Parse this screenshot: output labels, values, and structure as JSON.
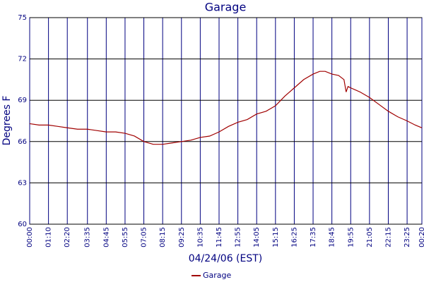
{
  "chart_data": {
    "type": "line",
    "title": "Garage",
    "y_label": "Degrees F",
    "x_label": "04/24/06 (EST)",
    "x": [
      0,
      35,
      70,
      105,
      140,
      178,
      215,
      250,
      285,
      320,
      355,
      390,
      425,
      460,
      495,
      530,
      565,
      600,
      635,
      670,
      705,
      740,
      775,
      810,
      845,
      880,
      915,
      950,
      985,
      1020,
      1055,
      1080,
      1100,
      1125,
      1150,
      1170,
      1178,
      1185,
      1195,
      1230,
      1265,
      1300,
      1335,
      1370,
      1405,
      1435,
      1460
    ],
    "series": [
      {
        "name": "Garage",
        "color": "#a00000",
        "values": [
          67.3,
          67.2,
          67.2,
          67.1,
          67.0,
          66.9,
          66.9,
          66.8,
          66.7,
          66.7,
          66.6,
          66.4,
          66.0,
          65.8,
          65.8,
          65.9,
          66.0,
          66.1,
          66.3,
          66.4,
          66.7,
          67.1,
          67.4,
          67.6,
          68.0,
          68.2,
          68.6,
          69.3,
          69.9,
          70.5,
          70.9,
          71.1,
          71.1,
          70.9,
          70.8,
          70.5,
          69.6,
          70.0,
          69.9,
          69.6,
          69.2,
          68.7,
          68.2,
          67.8,
          67.5,
          67.2,
          67.0
        ]
      }
    ],
    "xlim": [
      0,
      1460
    ],
    "xticks": [
      {
        "value": 0,
        "label": "00:00"
      },
      {
        "value": 70,
        "label": "01:10"
      },
      {
        "value": 140,
        "label": "02:20"
      },
      {
        "value": 215,
        "label": "03:35"
      },
      {
        "value": 285,
        "label": "04:45"
      },
      {
        "value": 355,
        "label": "05:55"
      },
      {
        "value": 425,
        "label": "07:05"
      },
      {
        "value": 495,
        "label": "08:15"
      },
      {
        "value": 565,
        "label": "09:25"
      },
      {
        "value": 635,
        "label": "10:35"
      },
      {
        "value": 705,
        "label": "11:45"
      },
      {
        "value": 775,
        "label": "12:55"
      },
      {
        "value": 845,
        "label": "14:05"
      },
      {
        "value": 915,
        "label": "15:15"
      },
      {
        "value": 985,
        "label": "16:25"
      },
      {
        "value": 1055,
        "label": "17:35"
      },
      {
        "value": 1125,
        "label": "18:45"
      },
      {
        "value": 1195,
        "label": "19:55"
      },
      {
        "value": 1265,
        "label": "21:05"
      },
      {
        "value": 1335,
        "label": "22:15"
      },
      {
        "value": 1405,
        "label": "23:25"
      },
      {
        "value": 1460,
        "label": "00:20"
      }
    ],
    "ylim": [
      60,
      75
    ],
    "yticks": [
      60,
      63,
      66,
      69,
      72,
      75
    ],
    "grid": true,
    "legend": "bottom"
  }
}
